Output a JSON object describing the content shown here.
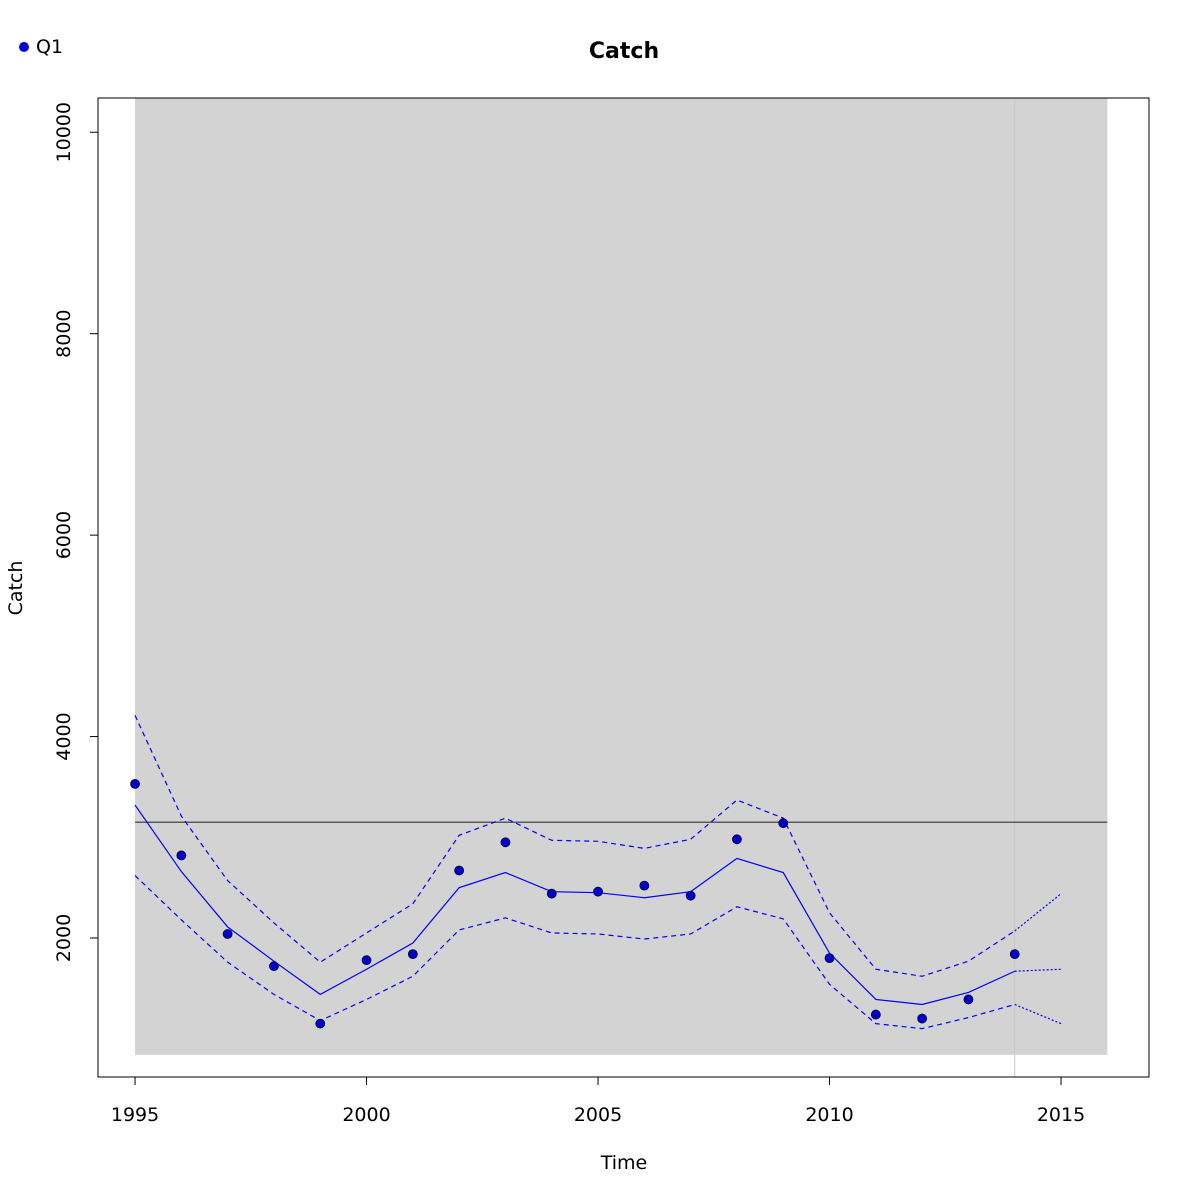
{
  "chart_data": {
    "type": "line",
    "title": "Catch",
    "xlabel": "Time",
    "ylabel": "Catch",
    "xlim": [
      1994.2,
      2016.9
    ],
    "ylim": [
      620,
      10340
    ],
    "x_ticks": [
      1995,
      2000,
      2005,
      2010,
      2015
    ],
    "y_ticks": [
      2000,
      4000,
      6000,
      8000,
      10000
    ],
    "legend": {
      "position": "top-left",
      "entries": [
        {
          "name": "Q1",
          "color": "#0000cd"
        }
      ]
    },
    "colors": {
      "series": "#0000ff",
      "points": "#0000cd",
      "band": "#d3d3d3",
      "reference": "#333333",
      "divider": "#c8c8c8"
    },
    "band": {
      "x": [
        1995,
        2016
      ],
      "y": [
        840,
        10340
      ]
    },
    "reference_line": {
      "y": 3150,
      "x": [
        1995,
        2016
      ]
    },
    "divider_x": 2014,
    "x": [
      1995,
      1996,
      1997,
      1998,
      1999,
      2000,
      2001,
      2002,
      2003,
      2004,
      2005,
      2006,
      2007,
      2008,
      2009,
      2010,
      2011,
      2012,
      2013,
      2014
    ],
    "series": [
      {
        "name": "Q1",
        "style": "points",
        "values": [
          3530,
          2820,
          2040,
          1720,
          1150,
          1780,
          1840,
          2670,
          2950,
          2440,
          2460,
          2520,
          2420,
          2980,
          3140,
          1800,
          1240,
          1200,
          1390,
          1840
        ]
      },
      {
        "style": "solid",
        "values": [
          3320,
          2660,
          2110,
          1770,
          1440,
          1690,
          1950,
          2500,
          2650,
          2460,
          2450,
          2400,
          2460,
          2790,
          2650,
          1850,
          1390,
          1340,
          1460,
          1670
        ]
      },
      {
        "style": "dashed",
        "values": [
          4210,
          3210,
          2570,
          2150,
          1760,
          2050,
          2340,
          3020,
          3190,
          2970,
          2960,
          2890,
          2980,
          3370,
          3190,
          2250,
          1690,
          1620,
          1770,
          2070
        ]
      },
      {
        "style": "dashed",
        "values": [
          2620,
          2180,
          1760,
          1440,
          1180,
          1390,
          1620,
          2080,
          2200,
          2050,
          2040,
          1990,
          2040,
          2310,
          2190,
          1540,
          1150,
          1100,
          1210,
          1340
        ]
      },
      {
        "style": "dotted",
        "x": [
          2014,
          2015
        ],
        "values": [
          1670,
          1690
        ]
      },
      {
        "style": "dotted",
        "x": [
          2014,
          2015
        ],
        "values": [
          2070,
          2440
        ]
      },
      {
        "style": "dotted",
        "x": [
          2014,
          2015
        ],
        "values": [
          1340,
          1150
        ]
      }
    ]
  }
}
